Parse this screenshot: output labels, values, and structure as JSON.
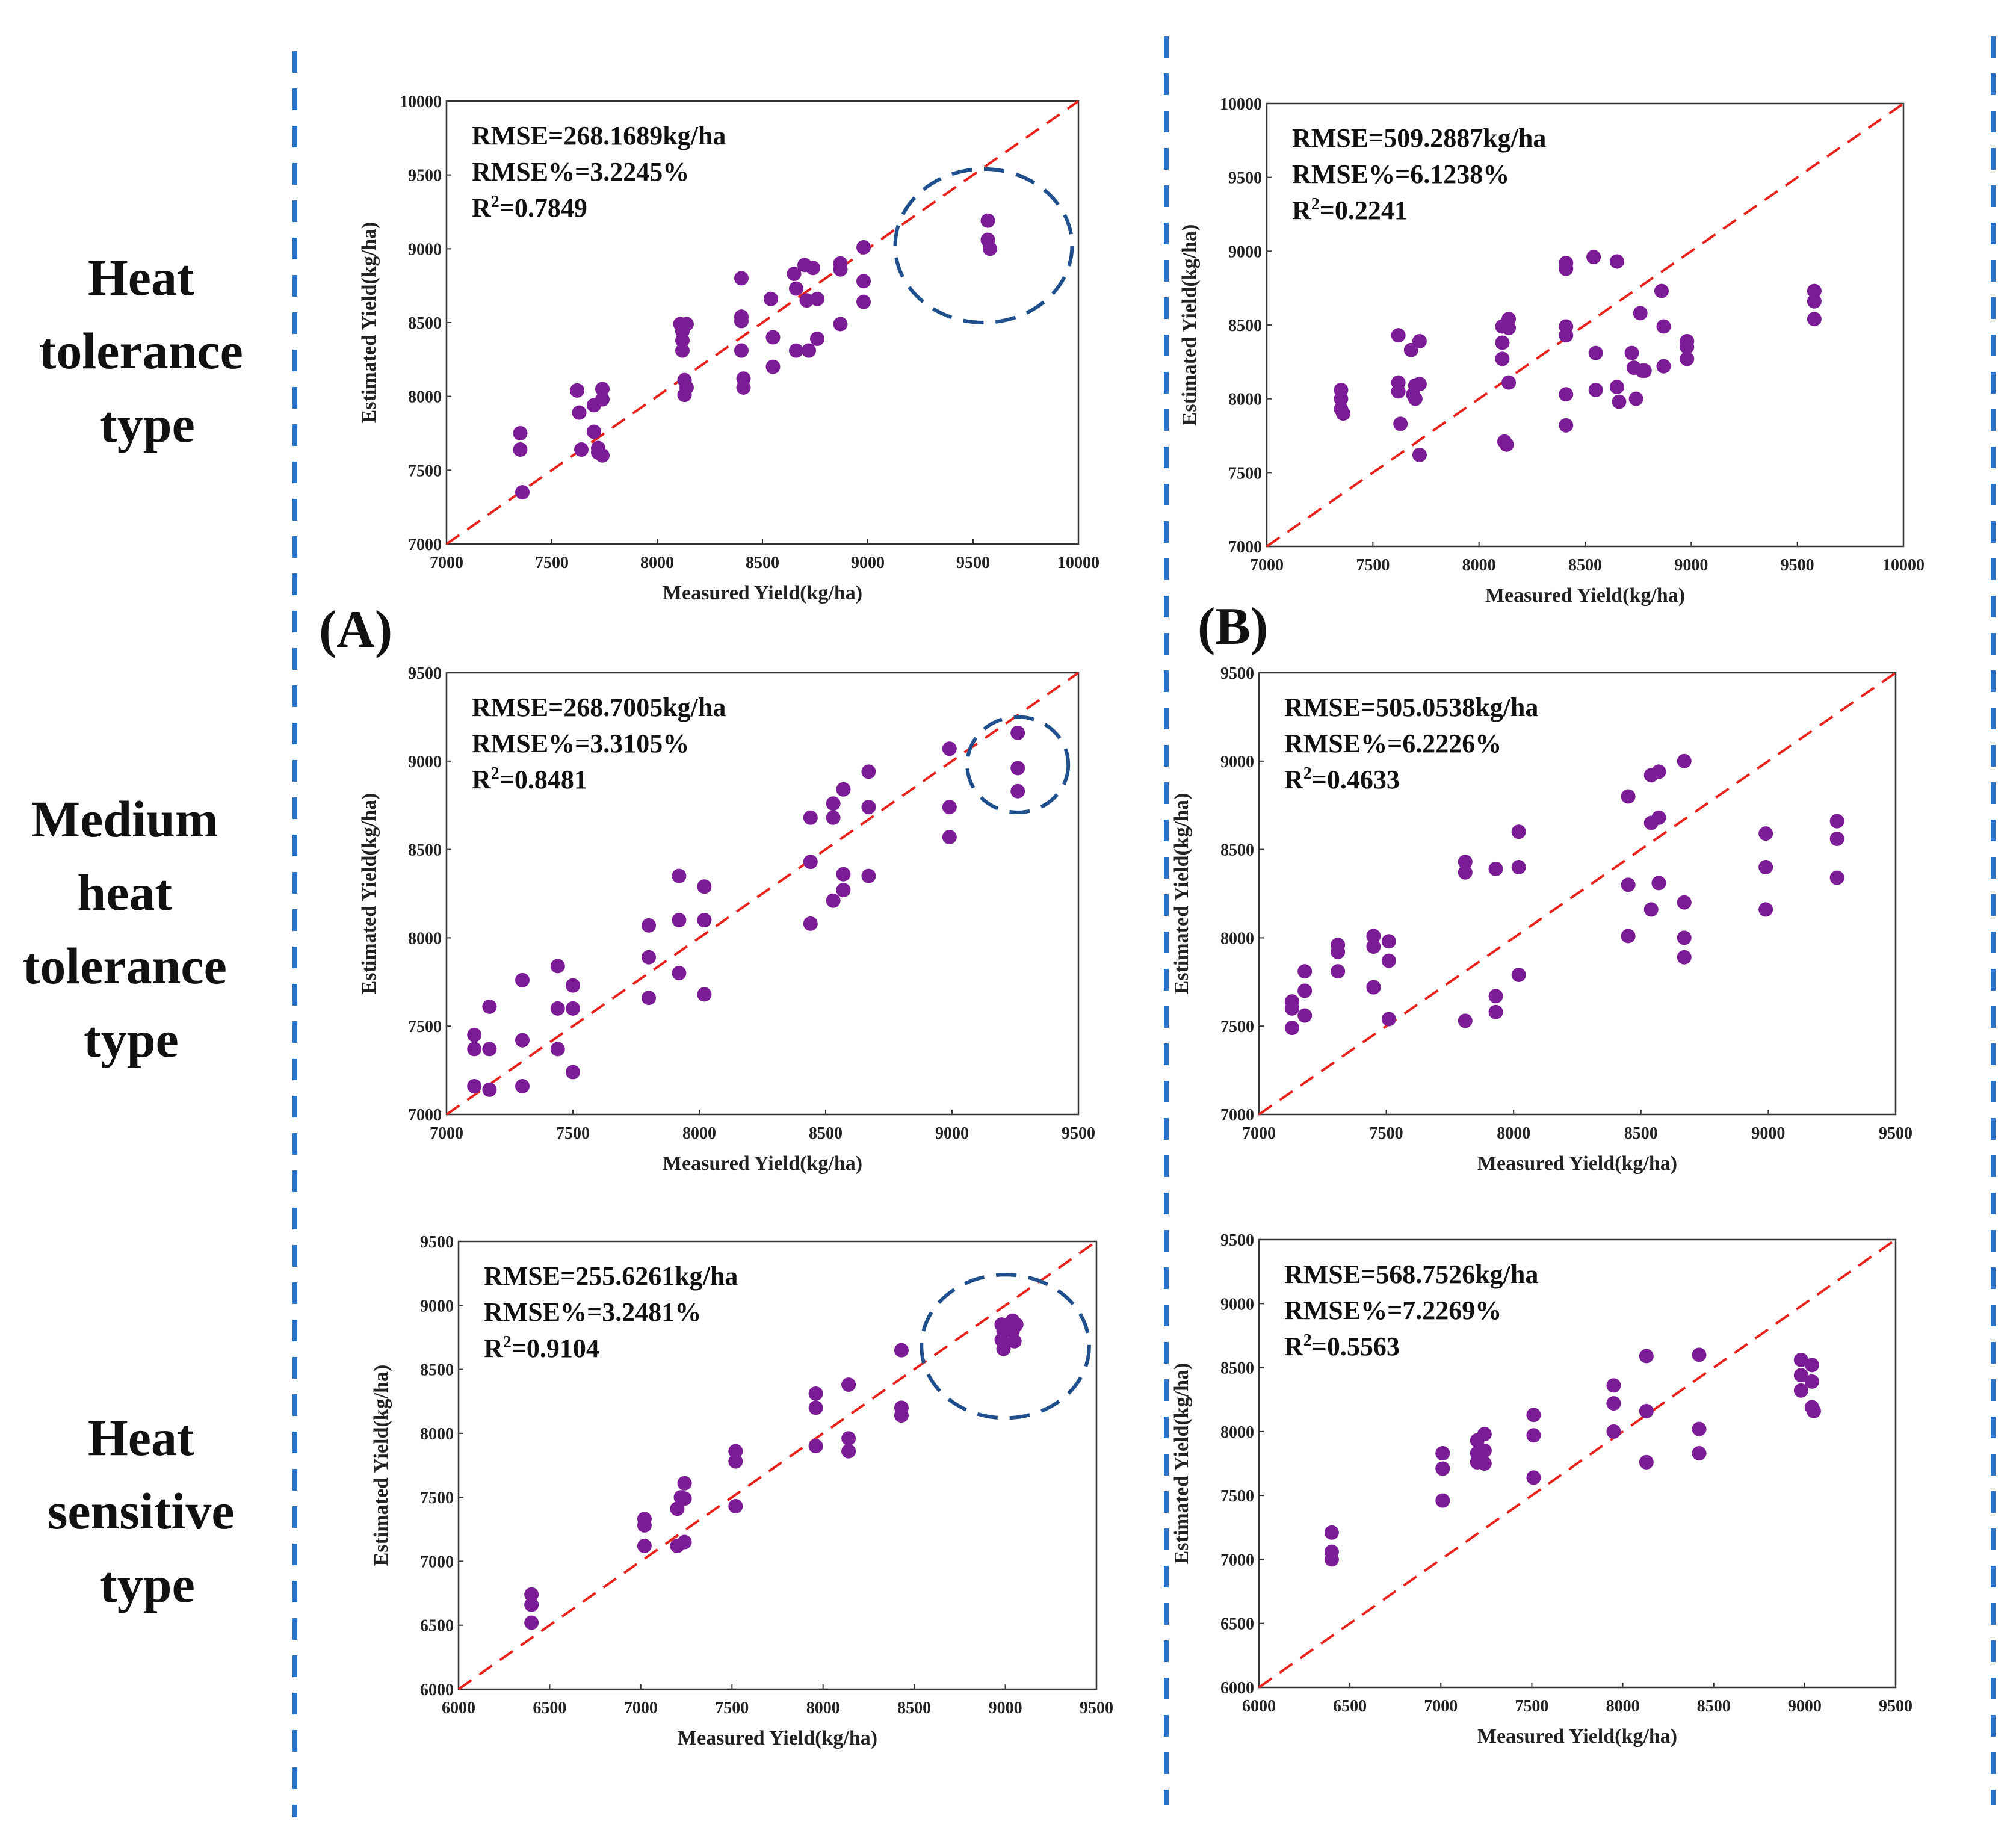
{
  "row_labels": [
    [
      "Heat",
      "tolerance",
      "type"
    ],
    [
      "Medium",
      "heat",
      "tolerance",
      "type"
    ],
    [
      "Heat",
      "sensitive",
      "type"
    ]
  ],
  "panel_labels": [
    "(A)",
    "(B)"
  ],
  "colors": {
    "point": "#7b1b96",
    "identity_line": "#e8221b",
    "ellipse": "#1f4f8c",
    "separator": "#2a73c8",
    "axis": "#333333"
  },
  "chart_data": [
    {
      "id": "A1",
      "type": "scatter",
      "column": "A",
      "row": "Heat tolerance type",
      "xlabel": "Measured Yield(kg/ha)",
      "ylabel": "Estimated Yield(kg/ha)",
      "xlim": [
        7000,
        10000
      ],
      "ylim": [
        7000,
        10000
      ],
      "xticks": [
        7000,
        7500,
        8000,
        8500,
        9000,
        9500,
        10000
      ],
      "yticks": [
        7000,
        7500,
        8000,
        8500,
        9000,
        9500,
        10000
      ],
      "stats": {
        "rmse": "RMSE=268.1689kg/ha",
        "rmse_pct": "RMSE%=3.2245%",
        "r2_prefix": "R",
        "r2_sup": "2",
        "r2_value": "=0.7849"
      },
      "identity_line": true,
      "highlight": {
        "cx": 9550,
        "cy": 9020,
        "rx": 420,
        "ry": 520
      },
      "points": [
        [
          7350,
          7750
        ],
        [
          7350,
          7640
        ],
        [
          7360,
          7350
        ],
        [
          7620,
          8040
        ],
        [
          7630,
          7890
        ],
        [
          7640,
          7640
        ],
        [
          7700,
          7760
        ],
        [
          7700,
          7940
        ],
        [
          7720,
          7650
        ],
        [
          7720,
          7620
        ],
        [
          7740,
          7600
        ],
        [
          7740,
          7980
        ],
        [
          7740,
          8050
        ],
        [
          8110,
          8490
        ],
        [
          8120,
          8380
        ],
        [
          8120,
          8440
        ],
        [
          8120,
          8310
        ],
        [
          8130,
          8110
        ],
        [
          8130,
          8010
        ],
        [
          8140,
          8060
        ],
        [
          8140,
          8490
        ],
        [
          8400,
          8800
        ],
        [
          8400,
          8540
        ],
        [
          8400,
          8510
        ],
        [
          8400,
          8310
        ],
        [
          8410,
          8120
        ],
        [
          8410,
          8060
        ],
        [
          8540,
          8660
        ],
        [
          8550,
          8400
        ],
        [
          8550,
          8200
        ],
        [
          8650,
          8830
        ],
        [
          8660,
          8730
        ],
        [
          8660,
          8310
        ],
        [
          8700,
          8890
        ],
        [
          8710,
          8650
        ],
        [
          8720,
          8310
        ],
        [
          8740,
          8870
        ],
        [
          8760,
          8660
        ],
        [
          8760,
          8390
        ],
        [
          8870,
          8900
        ],
        [
          8870,
          8860
        ],
        [
          8870,
          8490
        ],
        [
          8980,
          9010
        ],
        [
          8980,
          8780
        ],
        [
          8980,
          8640
        ],
        [
          9570,
          9190
        ],
        [
          9570,
          9060
        ],
        [
          9580,
          9000
        ]
      ]
    },
    {
      "id": "B1",
      "type": "scatter",
      "column": "B",
      "row": "Heat tolerance type",
      "xlabel": "Measured Yield(kg/ha)",
      "ylabel": "Estimated Yield(kg/ha)",
      "xlim": [
        7000,
        10000
      ],
      "ylim": [
        7000,
        10000
      ],
      "xticks": [
        7000,
        7500,
        8000,
        8500,
        9000,
        9500,
        10000
      ],
      "yticks": [
        7000,
        7500,
        8000,
        8500,
        9000,
        9500,
        10000
      ],
      "stats": {
        "rmse": "RMSE=509.2887kg/ha",
        "rmse_pct": "RMSE%=6.1238%",
        "r2_prefix": "R",
        "r2_sup": "2",
        "r2_value": "=0.2241"
      },
      "identity_line": true,
      "points": [
        [
          7350,
          8060
        ],
        [
          7350,
          8000
        ],
        [
          7350,
          7930
        ],
        [
          7360,
          7900
        ],
        [
          7620,
          8430
        ],
        [
          7620,
          8110
        ],
        [
          7620,
          8050
        ],
        [
          7630,
          7830
        ],
        [
          7680,
          8330
        ],
        [
          7690,
          8030
        ],
        [
          7700,
          8090
        ],
        [
          7700,
          8000
        ],
        [
          7720,
          8390
        ],
        [
          7720,
          8100
        ],
        [
          7720,
          7620
        ],
        [
          8110,
          8490
        ],
        [
          8110,
          8380
        ],
        [
          8110,
          8270
        ],
        [
          8120,
          7710
        ],
        [
          8130,
          7690
        ],
        [
          8140,
          8540
        ],
        [
          8140,
          8480
        ],
        [
          8140,
          8110
        ],
        [
          8410,
          8920
        ],
        [
          8410,
          8880
        ],
        [
          8410,
          8490
        ],
        [
          8410,
          8430
        ],
        [
          8410,
          8030
        ],
        [
          8410,
          7820
        ],
        [
          8540,
          8960
        ],
        [
          8550,
          8310
        ],
        [
          8550,
          8060
        ],
        [
          8650,
          8930
        ],
        [
          8650,
          8080
        ],
        [
          8660,
          7980
        ],
        [
          8720,
          8310
        ],
        [
          8730,
          8210
        ],
        [
          8740,
          8000
        ],
        [
          8760,
          8580
        ],
        [
          8770,
          8190
        ],
        [
          8780,
          8190
        ],
        [
          8860,
          8730
        ],
        [
          8870,
          8490
        ],
        [
          8870,
          8220
        ],
        [
          8980,
          8390
        ],
        [
          8980,
          8350
        ],
        [
          8980,
          8270
        ],
        [
          9580,
          8730
        ],
        [
          9580,
          8660
        ],
        [
          9580,
          8540
        ]
      ]
    },
    {
      "id": "A2",
      "type": "scatter",
      "column": "A",
      "row": "Medium heat tolerance type",
      "xlabel": "Measured Yield(kg/ha)",
      "ylabel": "Estimated Yield(kg/ha)",
      "xlim": [
        7000,
        9500
      ],
      "ylim": [
        7000,
        9500
      ],
      "xticks": [
        7000,
        7500,
        8000,
        8500,
        9000,
        9500
      ],
      "yticks": [
        7000,
        7500,
        8000,
        8500,
        9000,
        9500
      ],
      "stats": {
        "rmse": "RMSE=268.7005kg/ha",
        "rmse_pct": "RMSE%=3.3105%",
        "r2_prefix": "R",
        "r2_sup": "2",
        "r2_value": "=0.8481"
      },
      "identity_line": true,
      "highlight": {
        "cx": 9260,
        "cy": 8980,
        "rx": 200,
        "ry": 270
      },
      "points": [
        [
          7110,
          7450
        ],
        [
          7110,
          7370
        ],
        [
          7110,
          7160
        ],
        [
          7170,
          7610
        ],
        [
          7170,
          7370
        ],
        [
          7170,
          7140
        ],
        [
          7300,
          7760
        ],
        [
          7300,
          7420
        ],
        [
          7300,
          7160
        ],
        [
          7440,
          7840
        ],
        [
          7440,
          7600
        ],
        [
          7440,
          7370
        ],
        [
          7500,
          7730
        ],
        [
          7500,
          7600
        ],
        [
          7500,
          7240
        ],
        [
          7800,
          8070
        ],
        [
          7800,
          7890
        ],
        [
          7800,
          7660
        ],
        [
          7920,
          8350
        ],
        [
          7920,
          8100
        ],
        [
          7920,
          7800
        ],
        [
          8020,
          8290
        ],
        [
          8020,
          8100
        ],
        [
          8020,
          7680
        ],
        [
          8440,
          8680
        ],
        [
          8440,
          8430
        ],
        [
          8440,
          8080
        ],
        [
          8530,
          8760
        ],
        [
          8530,
          8680
        ],
        [
          8530,
          8210
        ],
        [
          8570,
          8840
        ],
        [
          8570,
          8360
        ],
        [
          8570,
          8270
        ],
        [
          8670,
          8940
        ],
        [
          8670,
          8740
        ],
        [
          8670,
          8350
        ],
        [
          8990,
          9070
        ],
        [
          8990,
          8740
        ],
        [
          8990,
          8570
        ],
        [
          9260,
          9160
        ],
        [
          9260,
          8960
        ],
        [
          9260,
          8830
        ]
      ]
    },
    {
      "id": "B2",
      "type": "scatter",
      "column": "B",
      "row": "Medium heat tolerance type",
      "xlabel": "Measured Yield(kg/ha)",
      "ylabel": "Estimated Yield(kg/ha)",
      "xlim": [
        7000,
        9500
      ],
      "ylim": [
        7000,
        9500
      ],
      "xticks": [
        7000,
        7500,
        8000,
        8500,
        9000,
        9500
      ],
      "yticks": [
        7000,
        7500,
        8000,
        8500,
        9000,
        9500
      ],
      "stats": {
        "rmse": "RMSE=505.0538kg/ha",
        "rmse_pct": "RMSE%=6.2226%",
        "r2_prefix": "R",
        "r2_sup": "2",
        "r2_value": "=0.4633"
      },
      "identity_line": true,
      "points": [
        [
          7130,
          7640
        ],
        [
          7130,
          7600
        ],
        [
          7130,
          7490
        ],
        [
          7180,
          7810
        ],
        [
          7180,
          7700
        ],
        [
          7180,
          7560
        ],
        [
          7310,
          7960
        ],
        [
          7310,
          7920
        ],
        [
          7310,
          7810
        ],
        [
          7450,
          8010
        ],
        [
          7450,
          7950
        ],
        [
          7450,
          7720
        ],
        [
          7510,
          7980
        ],
        [
          7510,
          7870
        ],
        [
          7510,
          7540
        ],
        [
          7810,
          8430
        ],
        [
          7810,
          8370
        ],
        [
          7810,
          7530
        ],
        [
          7930,
          8390
        ],
        [
          7930,
          7670
        ],
        [
          7930,
          7580
        ],
        [
          8020,
          8600
        ],
        [
          8020,
          8400
        ],
        [
          8020,
          7790
        ],
        [
          8450,
          8800
        ],
        [
          8450,
          8300
        ],
        [
          8450,
          8010
        ],
        [
          8540,
          8920
        ],
        [
          8540,
          8650
        ],
        [
          8540,
          8160
        ],
        [
          8570,
          8940
        ],
        [
          8570,
          8680
        ],
        [
          8570,
          8310
        ],
        [
          8670,
          9000
        ],
        [
          8670,
          8200
        ],
        [
          8670,
          8000
        ],
        [
          8670,
          7890
        ],
        [
          8990,
          8590
        ],
        [
          8990,
          8400
        ],
        [
          8990,
          8160
        ],
        [
          9270,
          8660
        ],
        [
          9270,
          8560
        ],
        [
          9270,
          8340
        ]
      ]
    },
    {
      "id": "A3",
      "type": "scatter",
      "column": "A",
      "row": "Heat sensitive type",
      "xlabel": "Measured Yield(kg/ha)",
      "ylabel": "Estimated Yield(kg/ha)",
      "xlim": [
        6000,
        9500
      ],
      "ylim": [
        6000,
        9500
      ],
      "xticks": [
        6000,
        6500,
        7000,
        7500,
        8000,
        8500,
        9000,
        9500
      ],
      "yticks": [
        6000,
        6500,
        7000,
        7500,
        8000,
        8500,
        9000,
        9500
      ],
      "stats": {
        "rmse": "RMSE=255.6261kg/ha",
        "rmse_pct": "RMSE%=3.2481%",
        "r2_prefix": "R",
        "r2_sup": "2",
        "r2_value": "=0.9104"
      },
      "identity_line": true,
      "highlight": {
        "cx": 9000,
        "cy": 8680,
        "rx": 460,
        "ry": 560
      },
      "points": [
        [
          6400,
          6740
        ],
        [
          6400,
          6660
        ],
        [
          6400,
          6520
        ],
        [
          7020,
          7330
        ],
        [
          7020,
          7280
        ],
        [
          7020,
          7120
        ],
        [
          7200,
          7410
        ],
        [
          7200,
          7120
        ],
        [
          7220,
          7500
        ],
        [
          7240,
          7610
        ],
        [
          7240,
          7490
        ],
        [
          7240,
          7150
        ],
        [
          7520,
          7860
        ],
        [
          7520,
          7780
        ],
        [
          7520,
          7430
        ],
        [
          7960,
          8310
        ],
        [
          7960,
          8200
        ],
        [
          7960,
          7900
        ],
        [
          8140,
          8380
        ],
        [
          8140,
          7960
        ],
        [
          8140,
          7860
        ],
        [
          8430,
          8650
        ],
        [
          8430,
          8200
        ],
        [
          8430,
          8140
        ],
        [
          8980,
          8850
        ],
        [
          8980,
          8730
        ],
        [
          8990,
          8800
        ],
        [
          8990,
          8660
        ],
        [
          9040,
          8880
        ],
        [
          9040,
          8800
        ],
        [
          9050,
          8720
        ],
        [
          9060,
          8850
        ]
      ]
    },
    {
      "id": "B3",
      "type": "scatter",
      "column": "B",
      "row": "Heat sensitive type",
      "xlabel": "Measured Yield(kg/ha)",
      "ylabel": "Estimated Yield(kg/ha)",
      "xlim": [
        6000,
        9500
      ],
      "ylim": [
        6000,
        9500
      ],
      "xticks": [
        6000,
        6500,
        7000,
        7500,
        8000,
        8500,
        9000,
        9500
      ],
      "yticks": [
        6000,
        6500,
        7000,
        7500,
        8000,
        8500,
        9000,
        9500
      ],
      "stats": {
        "rmse": "RMSE=568.7526kg/ha",
        "rmse_pct": "RMSE%=7.2269%",
        "r2_prefix": "R",
        "r2_sup": "2",
        "r2_value": "=0.5563"
      },
      "identity_line": true,
      "points": [
        [
          6400,
          7210
        ],
        [
          6400,
          7060
        ],
        [
          6400,
          7000
        ],
        [
          7010,
          7830
        ],
        [
          7010,
          7710
        ],
        [
          7010,
          7460
        ],
        [
          7200,
          7930
        ],
        [
          7200,
          7830
        ],
        [
          7200,
          7760
        ],
        [
          7240,
          7980
        ],
        [
          7240,
          7850
        ],
        [
          7240,
          7750
        ],
        [
          7510,
          8130
        ],
        [
          7510,
          7970
        ],
        [
          7510,
          7640
        ],
        [
          7950,
          8360
        ],
        [
          7950,
          8220
        ],
        [
          7950,
          8000
        ],
        [
          8130,
          8590
        ],
        [
          8130,
          8160
        ],
        [
          8130,
          7760
        ],
        [
          8420,
          8600
        ],
        [
          8420,
          8020
        ],
        [
          8420,
          7830
        ],
        [
          8980,
          8560
        ],
        [
          8980,
          8440
        ],
        [
          8980,
          8320
        ],
        [
          9040,
          8520
        ],
        [
          9040,
          8390
        ],
        [
          9040,
          8190
        ],
        [
          9050,
          8160
        ]
      ]
    }
  ]
}
